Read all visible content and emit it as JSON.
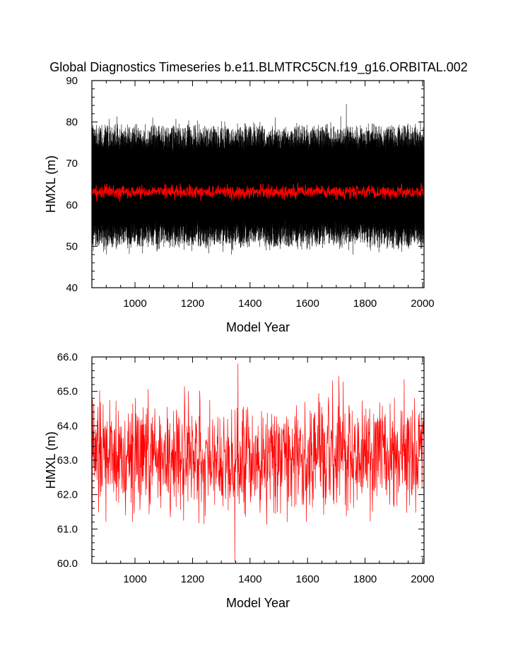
{
  "title": "Global Diagnostics Timeseries b.e11.BLMTRC5CN.f19_g16.ORBITAL.002",
  "colors": {
    "annual": "#000000",
    "smoothed": "#ff0000",
    "background": "#ffffff"
  },
  "chart_data": [
    {
      "type": "line",
      "xlabel": "Model Year",
      "ylabel": "HMXL (m)",
      "xlim": [
        850,
        2005
      ],
      "ylim": [
        40,
        90
      ],
      "xticks": [
        "1000",
        "1200",
        "1400",
        "1600",
        "1800",
        "2000"
      ],
      "yticks": [
        "40",
        "50",
        "60",
        "70",
        "80",
        "90"
      ],
      "grid": false,
      "legend": "none",
      "series": [
        {
          "style": "monthly values, dense black line",
          "color": "#000000",
          "x_range": [
            850,
            2005
          ],
          "typical_range": [
            50,
            79
          ],
          "extremes": {
            "min": 48,
            "max": 84.3,
            "max_near_year": 1735
          }
        },
        {
          "style": "annual mean, red line",
          "color": "#ff0000",
          "x_range": [
            850,
            2005
          ],
          "typical_range": [
            61.5,
            64.5
          ],
          "mean": 63.1
        }
      ]
    },
    {
      "type": "line",
      "xlabel": "Model Year",
      "ylabel": "HMXL (m)",
      "xlim": [
        850,
        2005
      ],
      "ylim": [
        60.0,
        66.0
      ],
      "xticks": [
        "1000",
        "1200",
        "1400",
        "1600",
        "1800",
        "2000"
      ],
      "yticks": [
        "60.0",
        "61.0",
        "62.0",
        "63.0",
        "64.0",
        "65.0",
        "66.0"
      ],
      "grid": false,
      "legend": "none",
      "series": [
        {
          "style": "annual mean, red line",
          "color": "#ff0000",
          "x_range": [
            850,
            2005
          ],
          "mean": 63.1,
          "typical_range": [
            61.5,
            64.7
          ],
          "extremes": {
            "min": 60.05,
            "min_near_year": 1347,
            "max": 65.8,
            "max_near_year": 1358
          }
        }
      ]
    }
  ]
}
